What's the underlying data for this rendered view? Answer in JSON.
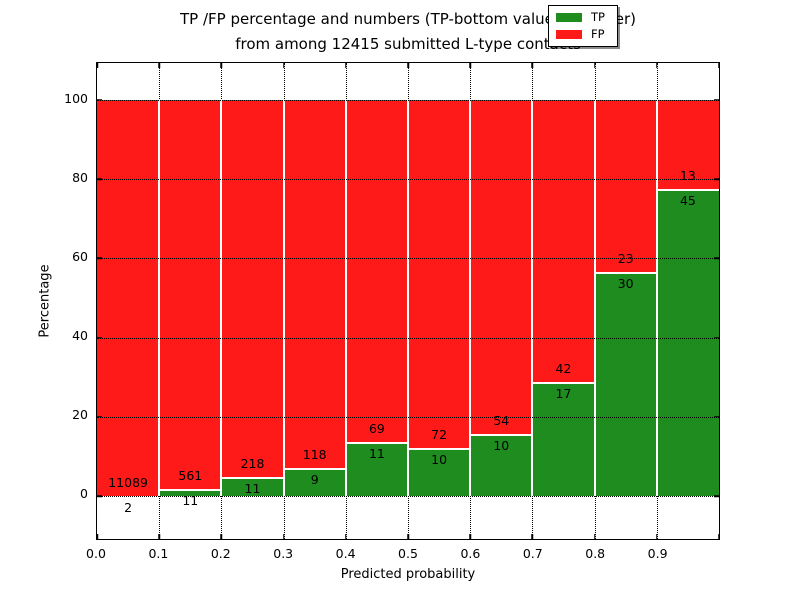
{
  "chart_data": {
    "type": "bar",
    "stacked": true,
    "normalized": "percent",
    "title_lines": [
      "TP /FP percentage and numbers (TP-bottom value, FP-upper)",
      "from among 12415 submitted L-type contacts"
    ],
    "xlabel": "Predicted probability",
    "ylabel": "Percentage",
    "bins": [
      {
        "x_range": [
          0.0,
          0.1
        ],
        "tp": 2,
        "fp": 11089
      },
      {
        "x_range": [
          0.1,
          0.2
        ],
        "tp": 11,
        "fp": 561
      },
      {
        "x_range": [
          0.2,
          0.3
        ],
        "tp": 11,
        "fp": 218
      },
      {
        "x_range": [
          0.3,
          0.4
        ],
        "tp": 9,
        "fp": 118
      },
      {
        "x_range": [
          0.4,
          0.5
        ],
        "tp": 11,
        "fp": 69
      },
      {
        "x_range": [
          0.5,
          0.6
        ],
        "tp": 10,
        "fp": 72
      },
      {
        "x_range": [
          0.6,
          0.7
        ],
        "tp": 10,
        "fp": 54
      },
      {
        "x_range": [
          0.7,
          0.8
        ],
        "tp": 17,
        "fp": 42
      },
      {
        "x_range": [
          0.8,
          0.9
        ],
        "tp": 30,
        "fp": 23
      },
      {
        "x_range": [
          0.9,
          1.0
        ],
        "tp": 45,
        "fp": 13
      }
    ],
    "xticks": [
      "0.0",
      "0.1",
      "0.2",
      "0.3",
      "0.4",
      "0.5",
      "0.6",
      "0.7",
      "0.8",
      "0.9"
    ],
    "yticks": [
      0,
      20,
      40,
      60,
      80,
      100
    ],
    "xlim": [
      0.0,
      1.0
    ],
    "ylim": [
      0,
      100
    ],
    "ylim_display": [
      -10.8,
      109.3
    ],
    "grid": true,
    "legend": {
      "position": "upper right",
      "items": [
        {
          "label": "TP",
          "color": "#1e8c1e"
        },
        {
          "label": "FP",
          "color": "#ff1a1a"
        }
      ]
    }
  }
}
